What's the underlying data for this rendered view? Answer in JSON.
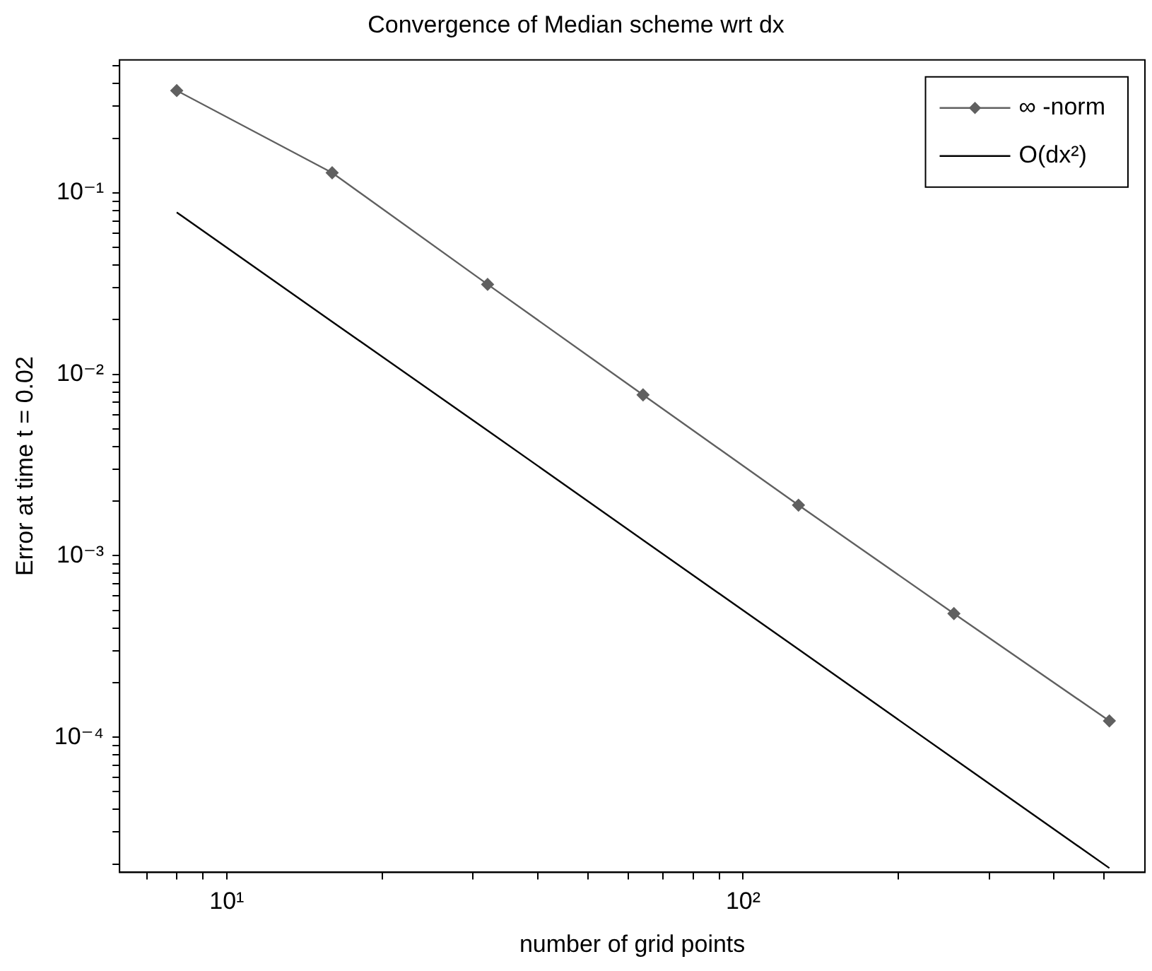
{
  "chart_data": {
    "type": "line",
    "title": "Convergence of Median scheme wrt dx",
    "xlabel": "number of grid points",
    "ylabel": "Error at time t = 0.02",
    "log": "xy",
    "legend": "top right",
    "line_style": "solid",
    "x": [
      8,
      16,
      32,
      64,
      128,
      256,
      512
    ],
    "xlim": [
      6.2,
      600
    ],
    "ylim": [
      1.8e-05,
      0.54
    ],
    "xticks": [
      {
        "value": 7,
        "label": null
      },
      {
        "value": 8,
        "label": null
      },
      {
        "value": 9,
        "label": null
      },
      {
        "value": 10,
        "label": "10¹"
      },
      {
        "value": 20,
        "label": null
      },
      {
        "value": 30,
        "label": null
      },
      {
        "value": 40,
        "label": null
      },
      {
        "value": 50,
        "label": null
      },
      {
        "value": 60,
        "label": null
      },
      {
        "value": 70,
        "label": null
      },
      {
        "value": 80,
        "label": null
      },
      {
        "value": 90,
        "label": null
      },
      {
        "value": 100,
        "label": "10²"
      },
      {
        "value": 200,
        "label": null
      },
      {
        "value": 300,
        "label": null
      },
      {
        "value": 400,
        "label": null
      },
      {
        "value": 500,
        "label": null
      }
    ],
    "yticks": [
      {
        "value": 2e-05,
        "label": null
      },
      {
        "value": 3e-05,
        "label": null
      },
      {
        "value": 4e-05,
        "label": null
      },
      {
        "value": 5e-05,
        "label": null
      },
      {
        "value": 6e-05,
        "label": null
      },
      {
        "value": 7e-05,
        "label": null
      },
      {
        "value": 8e-05,
        "label": null
      },
      {
        "value": 9e-05,
        "label": null
      },
      {
        "value": 0.0001,
        "label": "10⁻⁴"
      },
      {
        "value": 0.0002,
        "label": null
      },
      {
        "value": 0.0003,
        "label": null
      },
      {
        "value": 0.0004,
        "label": null
      },
      {
        "value": 0.0005,
        "label": null
      },
      {
        "value": 0.0006,
        "label": null
      },
      {
        "value": 0.0007,
        "label": null
      },
      {
        "value": 0.0008,
        "label": null
      },
      {
        "value": 0.0009,
        "label": null
      },
      {
        "value": 0.001,
        "label": "10⁻³"
      },
      {
        "value": 0.002,
        "label": null
      },
      {
        "value": 0.003,
        "label": null
      },
      {
        "value": 0.004,
        "label": null
      },
      {
        "value": 0.005,
        "label": null
      },
      {
        "value": 0.006,
        "label": null
      },
      {
        "value": 0.007,
        "label": null
      },
      {
        "value": 0.008,
        "label": null
      },
      {
        "value": 0.009,
        "label": null
      },
      {
        "value": 0.01,
        "label": "10⁻²"
      },
      {
        "value": 0.02,
        "label": null
      },
      {
        "value": 0.03,
        "label": null
      },
      {
        "value": 0.04,
        "label": null
      },
      {
        "value": 0.05,
        "label": null
      },
      {
        "value": 0.06,
        "label": null
      },
      {
        "value": 0.07,
        "label": null
      },
      {
        "value": 0.08,
        "label": null
      },
      {
        "value": 0.09,
        "label": null
      },
      {
        "value": 0.1,
        "label": "10⁻¹"
      },
      {
        "value": 0.2,
        "label": null
      },
      {
        "value": 0.3,
        "label": null
      },
      {
        "value": 0.4,
        "label": null
      },
      {
        "value": 0.5,
        "label": null
      }
    ],
    "series": [
      {
        "name": "∞ -norm",
        "color": "#606060",
        "marker": "diamond",
        "values": [
          0.366,
          0.129,
          0.0313,
          0.0077,
          0.0019,
          0.00048,
          0.000123
        ]
      },
      {
        "name": "O(dx²)",
        "color": "#000000",
        "marker": "none",
        "values": [
          0.078,
          0.0195,
          0.0049,
          0.00122,
          0.000305,
          7.6e-05,
          1.9e-05
        ]
      }
    ]
  }
}
